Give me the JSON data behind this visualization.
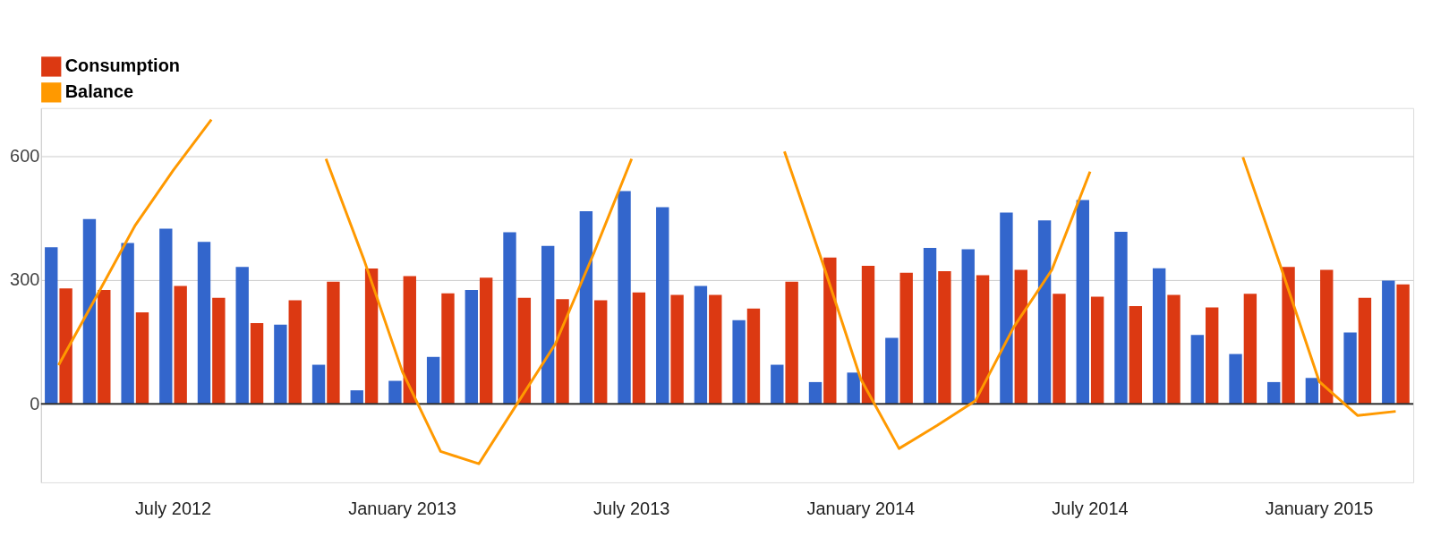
{
  "chart_data": {
    "type": "bar",
    "categories": [
      null,
      null,
      null,
      "July 2012",
      null,
      null,
      null,
      null,
      null,
      "January 2013",
      null,
      null,
      null,
      null,
      null,
      "July 2013",
      null,
      null,
      null,
      null,
      null,
      "January 2014",
      null,
      null,
      null,
      null,
      null,
      "July 2014",
      null,
      null,
      null,
      null,
      null,
      "January 2015",
      null,
      null
    ],
    "series": [
      {
        "color": "#3366cc",
        "values": [
          380,
          448,
          390,
          425,
          393,
          332,
          192,
          95,
          33,
          56,
          114,
          276,
          416,
          383,
          467,
          516,
          477,
          286,
          203,
          95,
          53,
          76,
          160,
          378,
          375,
          464,
          445,
          494,
          417,
          329,
          167,
          121,
          53,
          63,
          173,
          299
        ]
      },
      {
        "name": "Consumption",
        "color": "#dc3912",
        "values": [
          280,
          276,
          222,
          286,
          257,
          196,
          251,
          296,
          328,
          310,
          268,
          306,
          257,
          254,
          251,
          270,
          264,
          264,
          231,
          296,
          355,
          335,
          318,
          322,
          312,
          325,
          267,
          260,
          237,
          264,
          234,
          267,
          332,
          325,
          257,
          290
        ]
      },
      {
        "type": "line",
        "name": "Balance",
        "color": "#ff9900",
        "values": [
          94,
          262,
          432,
          566,
          689,
          null,
          null,
          594,
          348,
          78,
          -115,
          -145,
          0,
          145,
          363,
          594,
          null,
          null,
          null,
          612,
          342,
          60,
          -108,
          -52,
          8,
          186,
          325,
          563,
          null,
          null,
          null,
          598,
          330,
          54,
          -28,
          -18
        ]
      }
    ],
    "ylim": [
      -190,
      717
    ],
    "yticks": [
      0,
      300,
      600
    ],
    "grid": "y",
    "legend": "top left",
    "ref_lines": [
      {
        "axis": "y",
        "value": 0,
        "color": "#333333"
      }
    ]
  }
}
